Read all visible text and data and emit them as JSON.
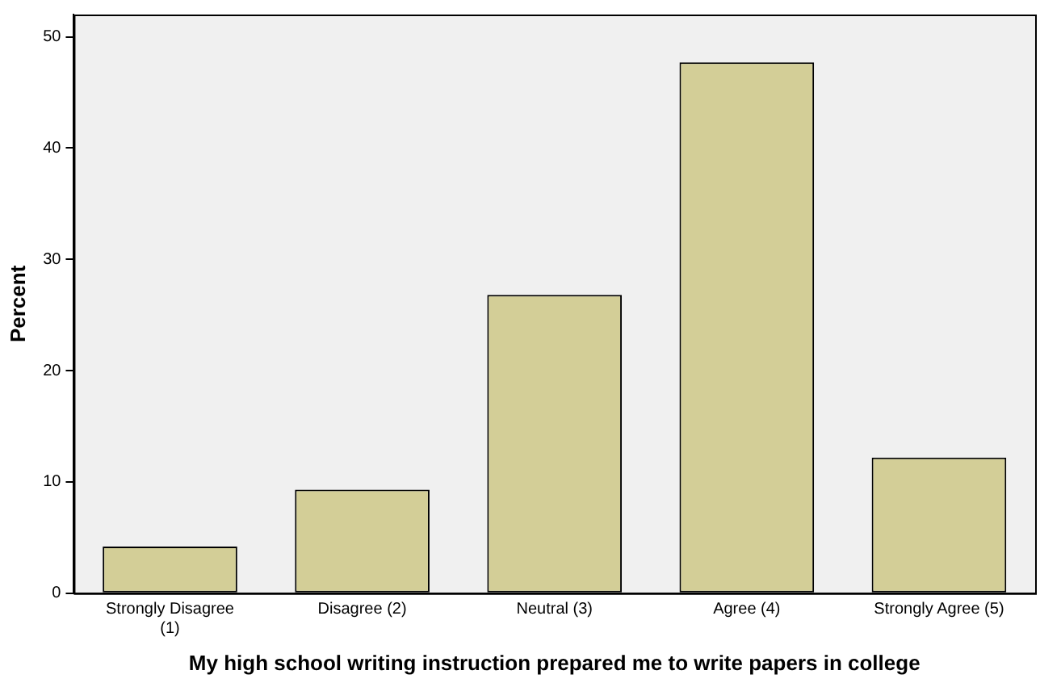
{
  "chart_data": {
    "type": "bar",
    "xlabel": "My high school writing instruction prepared me to write papers in college",
    "ylabel": "Percent",
    "categories": [
      "Strongly Disagree (1)",
      "Disagree (2)",
      "Neutral (3)",
      "Agree (4)",
      "Strongly Agree (5)"
    ],
    "values": [
      4.2,
      9.3,
      26.8,
      47.7,
      12.2
    ],
    "color": "#d3ce97",
    "ylim": [
      0,
      52
    ],
    "yticks": [
      0,
      10,
      20,
      30,
      40,
      50
    ],
    "grid": false,
    "legend": false
  }
}
